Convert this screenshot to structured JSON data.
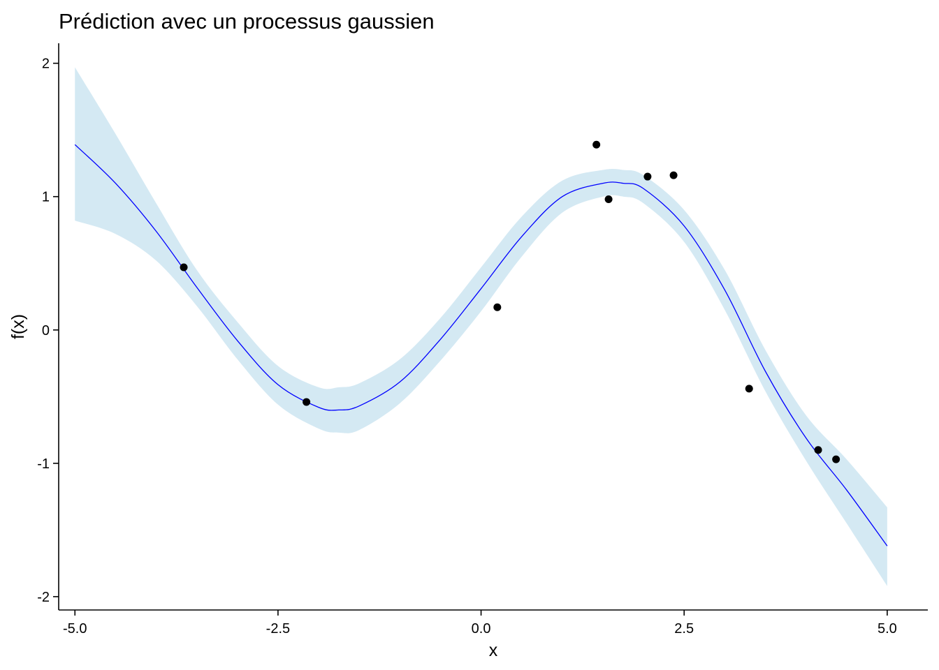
{
  "chart_data": {
    "type": "line",
    "title": "Prédiction avec un processus gaussien",
    "xlabel": "x",
    "ylabel": "f(x)",
    "xlim": [
      -5.2,
      5.5
    ],
    "ylim": [
      -2.1,
      2.15
    ],
    "xticks": [
      -5.0,
      -2.5,
      0.0,
      2.5,
      5.0
    ],
    "xtick_labels": [
      "-5.0",
      "-2.5",
      "0.0",
      "2.5",
      "5.0"
    ],
    "yticks": [
      -2,
      -1,
      0,
      1,
      2
    ],
    "ytick_labels": [
      "-2",
      "-1",
      "0",
      "1",
      "2"
    ],
    "grid": false,
    "colors": {
      "mean_line": "#0000ff",
      "band": "#d4e9f3",
      "points": "#000000"
    },
    "mean": {
      "x": [
        -5.0,
        -4.5,
        -4.0,
        -3.5,
        -3.0,
        -2.5,
        -2.0,
        -1.75,
        -1.5,
        -1.0,
        -0.5,
        0.0,
        0.5,
        1.0,
        1.5,
        1.75,
        2.0,
        2.5,
        3.0,
        3.5,
        4.0,
        4.5,
        5.0
      ],
      "y": [
        1.39,
        1.1,
        0.74,
        0.32,
        -0.08,
        -0.41,
        -0.58,
        -0.6,
        -0.57,
        -0.39,
        -0.07,
        0.31,
        0.7,
        1.0,
        1.1,
        1.1,
        1.06,
        0.78,
        0.3,
        -0.31,
        -0.81,
        -1.2,
        -1.62
      ]
    },
    "band": {
      "x": [
        -5.0,
        -4.5,
        -4.0,
        -3.5,
        -3.0,
        -2.5,
        -2.0,
        -1.75,
        -1.5,
        -1.0,
        -0.5,
        0.0,
        0.5,
        1.0,
        1.5,
        1.75,
        2.0,
        2.5,
        3.0,
        3.5,
        4.0,
        4.5,
        5.0
      ],
      "lower": [
        0.82,
        0.72,
        0.52,
        0.18,
        -0.22,
        -0.56,
        -0.74,
        -0.77,
        -0.75,
        -0.55,
        -0.23,
        0.14,
        0.55,
        0.88,
        1.0,
        1.0,
        0.95,
        0.66,
        0.15,
        -0.46,
        -0.98,
        -1.45,
        -1.92
      ],
      "upper": [
        1.97,
        1.47,
        0.95,
        0.45,
        0.06,
        -0.27,
        -0.43,
        -0.43,
        -0.4,
        -0.22,
        0.09,
        0.47,
        0.85,
        1.12,
        1.2,
        1.2,
        1.16,
        0.9,
        0.45,
        -0.15,
        -0.64,
        -0.97,
        -1.33
      ]
    },
    "points": {
      "x": [
        -3.66,
        -2.15,
        0.2,
        1.42,
        1.57,
        2.05,
        2.37,
        3.3,
        4.15,
        4.37
      ],
      "y": [
        0.47,
        -0.54,
        0.17,
        1.39,
        0.98,
        1.15,
        1.16,
        -0.44,
        -0.9,
        -0.97
      ]
    }
  }
}
